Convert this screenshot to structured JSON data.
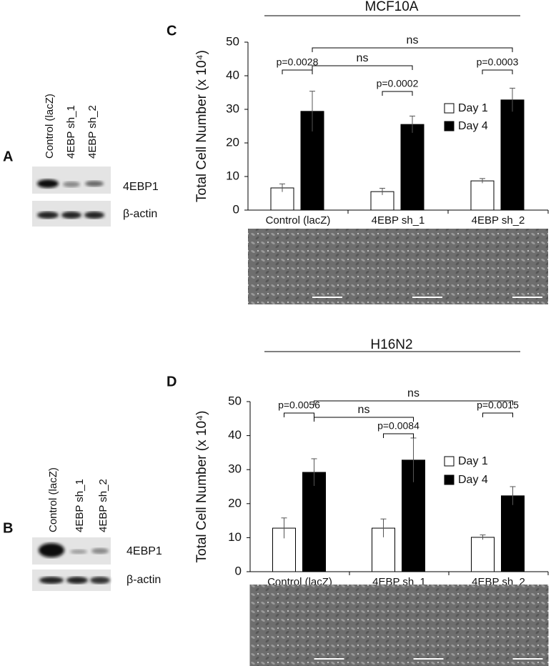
{
  "blots": [
    {
      "panel": "A",
      "lanes": [
        "Control (lacZ)",
        "4EBP sh_1",
        "4EBP sh_2"
      ],
      "rows": [
        "4EBP1",
        "β-actin"
      ]
    },
    {
      "panel": "B",
      "lanes": [
        "Control (lacZ)",
        "4EBP sh_1",
        "4EBP sh_2"
      ],
      "rows": [
        "4EBP1",
        "β-actin"
      ]
    }
  ],
  "chart_data": [
    {
      "type": "bar",
      "panel": "C",
      "title": "MCF10A",
      "y_label": "Total Cell Number (x 10⁴)",
      "categories": [
        "Control (lacZ)",
        "4EBP sh_1",
        "4EBP sh_2"
      ],
      "series": [
        {
          "name": "Day 1",
          "color": "#ffffff",
          "values": [
            6.6,
            5.5,
            8.7
          ],
          "errors": [
            1.2,
            1.0,
            0.7
          ]
        },
        {
          "name": "Day 4",
          "color": "#000000",
          "values": [
            29.4,
            25.5,
            32.8
          ],
          "errors": [
            6,
            2.5,
            3.5
          ]
        }
      ],
      "annotations": [
        "p=0.0028",
        "p=0.0002",
        "p=0.0003",
        "ns",
        "ns"
      ],
      "ylim": [
        0,
        50
      ],
      "yticks": [
        0,
        10,
        20,
        30,
        40,
        50
      ],
      "legend": "right",
      "grid": false
    },
    {
      "type": "bar",
      "panel": "D",
      "title": "H16N2",
      "y_label": "Total Cell Number (x 10⁴)",
      "categories": [
        "Control (lacZ)",
        "4EBP sh_1",
        "4EBP sh_2"
      ],
      "series": [
        {
          "name": "Day 1",
          "color": "#ffffff",
          "values": [
            12.8,
            12.8,
            10.1
          ],
          "errors": [
            3,
            2.7,
            0.7
          ]
        },
        {
          "name": "Day 4",
          "color": "#000000",
          "values": [
            29.2,
            32.8,
            22.3
          ],
          "errors": [
            4,
            6.5,
            2.7
          ]
        }
      ],
      "annotations": [
        "p=0.0056",
        "p=0.0084",
        "p=0.0015",
        "ns",
        "ns"
      ],
      "ylim": [
        0,
        50
      ],
      "yticks": [
        0,
        10,
        20,
        30,
        40,
        50
      ],
      "legend": "right",
      "grid": false
    }
  ]
}
